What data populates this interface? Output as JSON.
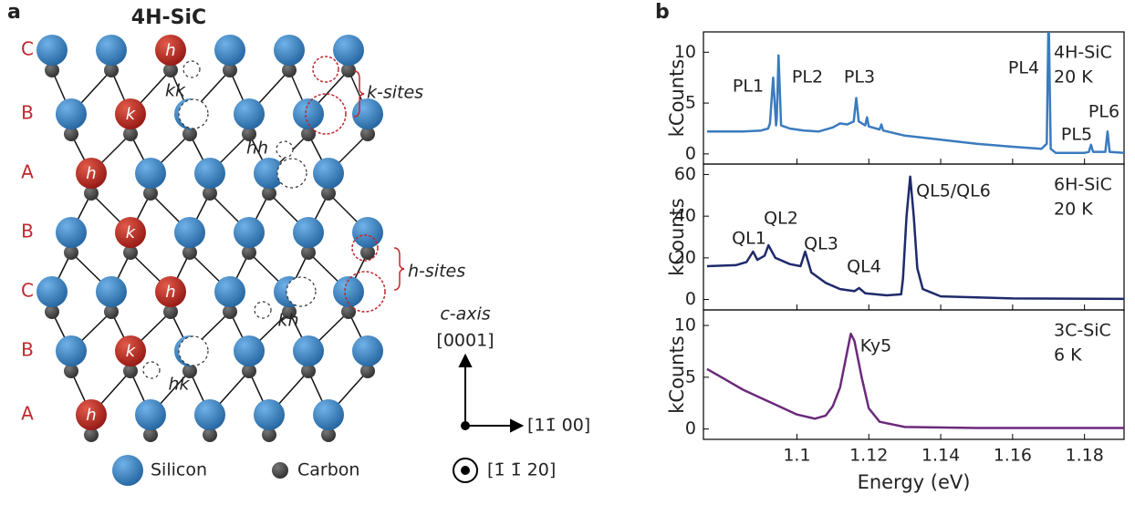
{
  "panel_a": {
    "label": "a",
    "title": "4H-SiC",
    "stacking": [
      "C",
      "B",
      "A",
      "B",
      "C",
      "B",
      "A"
    ],
    "red_sites": [
      "h",
      "k",
      "h",
      "k",
      "h",
      "k",
      "h"
    ],
    "pair_labels": [
      "kk",
      "hh",
      "kh",
      "hk"
    ],
    "k_sites": "k-sites",
    "h_sites": "h-sites",
    "axis_c": "c-axis",
    "axis_up": "[0001]",
    "axis_right": "[11̄ 00]",
    "axis_out": "[1̄ 1̄ 20]",
    "legend_si": "Silicon",
    "legend_c": "Carbon"
  },
  "panel_b": {
    "label": "b"
  },
  "chart_data": [
    {
      "type": "line",
      "sample": "4H-SiC",
      "temperature": "20 K",
      "ylabel": "kCounts",
      "xlim": [
        1.074,
        1.191
      ],
      "ylim": [
        -1,
        12
      ],
      "yticks": [
        0,
        5,
        10
      ],
      "x": [
        1.075,
        1.085,
        1.09,
        1.092,
        1.0925,
        1.0934,
        1.0942,
        1.0944,
        1.0949,
        1.0956,
        1.098,
        1.102,
        1.106,
        1.108,
        1.11,
        1.112,
        1.114,
        1.1158,
        1.1165,
        1.1172,
        1.119,
        1.1195,
        1.12,
        1.123,
        1.1235,
        1.124,
        1.13,
        1.14,
        1.15,
        1.16,
        1.168,
        1.1695,
        1.17,
        1.1706,
        1.172,
        1.18,
        1.1812,
        1.1818,
        1.1824,
        1.1858,
        1.1864,
        1.187,
        1.191
      ],
      "series": [
        {
          "color": "#3a7bbf",
          "values": [
            2.2,
            2.2,
            2.3,
            2.5,
            3,
            7.5,
            2.8,
            3.5,
            9.7,
            2.8,
            2.5,
            2.3,
            2.2,
            2.4,
            2.6,
            3.0,
            2.9,
            3.2,
            5.5,
            3.2,
            2.8,
            3.6,
            2.7,
            2.4,
            2.9,
            2.3,
            1.8,
            1.4,
            1.0,
            0.7,
            0.5,
            1,
            14,
            0.5,
            0.1,
            0.1,
            0.2,
            0.9,
            0.2,
            0.2,
            2.2,
            0.2,
            0.1
          ]
        }
      ],
      "annotations": [
        "PL1",
        "PL2",
        "PL3",
        "PL4",
        "PL5",
        "PL6"
      ]
    },
    {
      "type": "line",
      "sample": "6H-SiC",
      "temperature": "20 K",
      "ylabel": "kCounts",
      "xlim": [
        1.074,
        1.191
      ],
      "ylim": [
        -5,
        65
      ],
      "yticks": [
        0,
        20,
        40,
        60
      ],
      "x": [
        1.075,
        1.083,
        1.086,
        1.0878,
        1.089,
        1.091,
        1.0921,
        1.094,
        1.098,
        1.101,
        1.1023,
        1.104,
        1.108,
        1.112,
        1.116,
        1.1173,
        1.119,
        1.125,
        1.129,
        1.1295,
        1.1305,
        1.1315,
        1.1325,
        1.1335,
        1.135,
        1.14,
        1.16,
        1.191
      ],
      "series": [
        {
          "color": "#1f2a6b",
          "values": [
            16,
            16.5,
            18,
            23,
            19,
            21,
            26,
            20,
            17,
            16,
            23,
            13,
            8,
            5,
            4,
            5.5,
            3,
            2,
            2.5,
            10,
            40,
            59,
            40,
            15,
            5,
            1.5,
            0.5,
            0.3
          ]
        }
      ],
      "annotations": [
        "QL1",
        "QL2",
        "QL3",
        "QL4",
        "QL5/QL6"
      ]
    },
    {
      "type": "line",
      "sample": "3C-SiC",
      "temperature": "6 K",
      "ylabel": "kCounts",
      "xlabel": "Energy (eV)",
      "xlim": [
        1.074,
        1.191
      ],
      "ylim": [
        -1,
        11.5
      ],
      "yticks": [
        0,
        5,
        10
      ],
      "xticks": [
        1.1,
        1.12,
        1.14,
        1.16,
        1.18
      ],
      "x": [
        1.075,
        1.08,
        1.085,
        1.09,
        1.095,
        1.1,
        1.105,
        1.108,
        1.11,
        1.112,
        1.114,
        1.115,
        1.116,
        1.118,
        1.12,
        1.123,
        1.13,
        1.15,
        1.191
      ],
      "series": [
        {
          "color": "#6b2a7a",
          "values": [
            5.8,
            4.8,
            3.8,
            3.0,
            2.2,
            1.4,
            1.0,
            1.3,
            2.2,
            4,
            7.5,
            9.2,
            8.5,
            5,
            2,
            0.7,
            0.2,
            0.1,
            0.1
          ]
        }
      ],
      "annotations": [
        "Ky5"
      ]
    }
  ]
}
